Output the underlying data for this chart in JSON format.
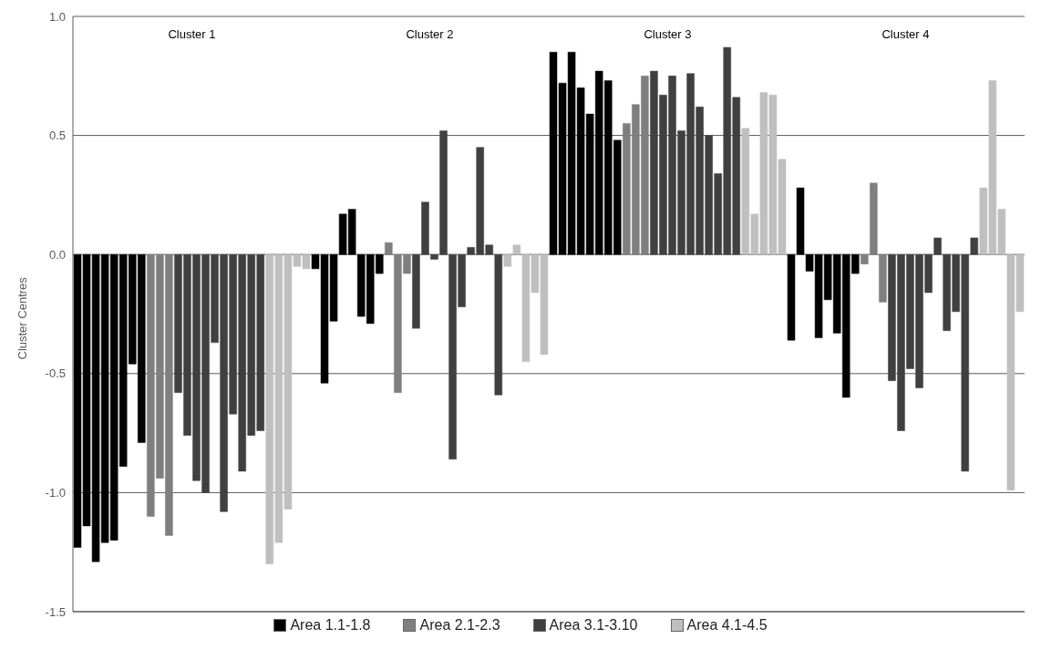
{
  "chart_data": {
    "type": "bar",
    "stacked": true,
    "ylabel": "Cluster Centres",
    "ylim": [
      -1.5,
      1.0
    ],
    "yticks": [
      {
        "value": -1.5,
        "label": "-1.5"
      },
      {
        "value": -1,
        "label": "-1.0"
      },
      {
        "value": -0.5,
        "label": "-0.5"
      },
      {
        "value": 0,
        "label": "0.0"
      },
      {
        "value": 0.5,
        "label": "0.5"
      },
      {
        "value": 1,
        "label": "1.0"
      }
    ],
    "grid": "y",
    "legend": "bottom",
    "annotations": [
      "Cluster 1",
      "Cluster 2",
      "Cluster 3",
      "Cluster 4"
    ],
    "categories": [
      null,
      null,
      null,
      null,
      null,
      null,
      null,
      null,
      null,
      null,
      null,
      null,
      null,
      null,
      null,
      null,
      null,
      null,
      null,
      null,
      null,
      null,
      null,
      null,
      null,
      null,
      null,
      null,
      null,
      null,
      null,
      null,
      null,
      null,
      null,
      null,
      null,
      null,
      null,
      null,
      null,
      null,
      null,
      null,
      null,
      null,
      null,
      null,
      null,
      null,
      null,
      null,
      null,
      null,
      null,
      null,
      null,
      null,
      null,
      null,
      null,
      null,
      null,
      null,
      null,
      null,
      null,
      null,
      null,
      null,
      null,
      null,
      null,
      null,
      null,
      null,
      null,
      null,
      null,
      null,
      null,
      null,
      null,
      null,
      null,
      null,
      null,
      null,
      null,
      null,
      null,
      null,
      null,
      null,
      null,
      null,
      null,
      null,
      null,
      null,
      null,
      null,
      null,
      null
    ],
    "series": [
      {
        "name": "Area 1.1-1.8",
        "color": "#000000",
        "values": [
          -1.23,
          -1.14,
          -1.29,
          -1.21,
          -1.2,
          -0.89,
          -0.46,
          -0.79,
          null,
          null,
          null,
          null,
          null,
          null,
          null,
          null,
          null,
          null,
          null,
          null,
          null,
          null,
          null,
          null,
          null,
          null,
          -0.06,
          -0.54,
          -0.28,
          0.17,
          0.19,
          -0.26,
          -0.29,
          -0.08,
          null,
          null,
          null,
          null,
          null,
          null,
          null,
          null,
          null,
          null,
          null,
          null,
          null,
          null,
          null,
          null,
          null,
          null,
          0.85,
          0.72,
          0.85,
          0.7,
          0.59,
          0.77,
          0.73,
          0.48,
          null,
          null,
          null,
          null,
          null,
          null,
          null,
          null,
          null,
          null,
          null,
          null,
          null,
          null,
          null,
          null,
          null,
          null,
          -0.36,
          0.28,
          -0.07,
          -0.35,
          -0.19,
          -0.33,
          -0.6,
          -0.08,
          null,
          null,
          null,
          null,
          null,
          null,
          null,
          null,
          null,
          null,
          null,
          null,
          null,
          null,
          null,
          null,
          null,
          null
        ]
      },
      {
        "name": "Area 2.1-2.3",
        "color": "#7f7f7f",
        "values": [
          null,
          null,
          null,
          null,
          null,
          null,
          null,
          null,
          -1.1,
          -0.94,
          -1.18,
          null,
          null,
          null,
          null,
          null,
          null,
          null,
          null,
          null,
          null,
          null,
          null,
          null,
          null,
          null,
          null,
          null,
          null,
          null,
          null,
          null,
          null,
          null,
          0.05,
          -0.58,
          -0.08,
          null,
          null,
          null,
          null,
          null,
          null,
          null,
          null,
          null,
          null,
          null,
          null,
          null,
          null,
          null,
          null,
          null,
          null,
          null,
          null,
          null,
          null,
          null,
          0.55,
          0.63,
          0.75,
          null,
          null,
          null,
          null,
          null,
          null,
          null,
          null,
          null,
          null,
          null,
          null,
          null,
          null,
          null,
          null,
          null,
          null,
          null,
          null,
          null,
          null,
          null,
          -0.04,
          0.3,
          -0.2,
          null,
          null,
          null,
          null,
          null,
          null,
          null,
          null,
          null,
          null,
          null,
          null,
          null,
          null,
          null
        ]
      },
      {
        "name": "Area 3.1-3.10",
        "color": "#404040",
        "values": [
          null,
          null,
          null,
          null,
          null,
          null,
          null,
          null,
          null,
          null,
          null,
          -0.58,
          -0.76,
          -0.95,
          -1.0,
          -0.37,
          -1.08,
          -0.67,
          -0.91,
          -0.76,
          -0.74,
          null,
          null,
          null,
          null,
          null,
          null,
          null,
          null,
          null,
          null,
          null,
          null,
          null,
          null,
          null,
          null,
          -0.31,
          0.22,
          -0.02,
          0.52,
          -0.86,
          -0.22,
          0.03,
          0.45,
          0.04,
          -0.59,
          null,
          null,
          null,
          null,
          null,
          null,
          null,
          null,
          null,
          null,
          null,
          null,
          null,
          null,
          null,
          null,
          0.77,
          0.67,
          0.75,
          0.52,
          0.76,
          0.62,
          0.5,
          0.34,
          0.87,
          0.66,
          null,
          null,
          null,
          null,
          null,
          null,
          null,
          null,
          null,
          null,
          null,
          null,
          null,
          null,
          null,
          null,
          -0.53,
          -0.74,
          -0.48,
          -0.56,
          -0.16,
          0.07,
          -0.32,
          -0.24,
          -0.91,
          0.07,
          null,
          null,
          null,
          null,
          null
        ]
      },
      {
        "name": "Area 4.1-4.5",
        "color": "#bfbfbf",
        "values": [
          null,
          null,
          null,
          null,
          null,
          null,
          null,
          null,
          null,
          null,
          null,
          null,
          null,
          null,
          null,
          null,
          null,
          null,
          null,
          null,
          null,
          -1.3,
          -1.21,
          -1.07,
          -0.05,
          -0.06,
          null,
          null,
          null,
          null,
          null,
          null,
          null,
          null,
          null,
          null,
          null,
          null,
          null,
          null,
          null,
          null,
          null,
          null,
          null,
          null,
          null,
          -0.05,
          0.04,
          -0.45,
          -0.16,
          -0.42,
          null,
          null,
          null,
          null,
          null,
          null,
          null,
          null,
          null,
          null,
          null,
          null,
          null,
          null,
          null,
          null,
          null,
          null,
          null,
          null,
          null,
          0.53,
          0.17,
          0.68,
          0.67,
          0.4,
          null,
          null,
          null,
          null,
          null,
          null,
          null,
          null,
          null,
          null,
          null,
          null,
          null,
          null,
          null,
          null,
          null,
          null,
          null,
          null,
          null,
          0.28,
          0.73,
          0.19,
          -0.99,
          -0.24
        ]
      }
    ]
  }
}
